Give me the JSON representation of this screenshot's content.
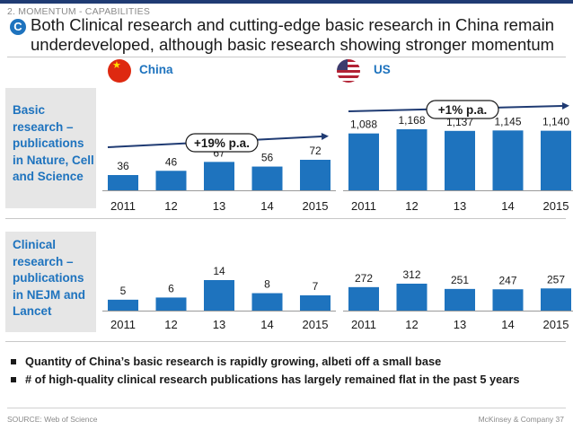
{
  "header": {
    "section": "2. MOMENTUM - CAPABILITIES",
    "badge": "C",
    "title": "Both Clinical research and cutting-edge basic research in China remain underdeveloped, although basic research showing stronger momentum"
  },
  "countries": [
    {
      "name": "China",
      "flag": "china-flag-icon"
    },
    {
      "name": "US",
      "flag": "us-flag-icon"
    }
  ],
  "rows": [
    {
      "label": "Basic research – publications in Nature, Cell and Science"
    },
    {
      "label": "Clinical research – publications in NEJM and Lancet"
    }
  ],
  "colors": {
    "bar": "#1e73be",
    "label_blue": "#1e73be",
    "accent": "#1f3b73",
    "row_bg": "#e6e6e6"
  },
  "chart_data": [
    {
      "type": "bar",
      "panel": "China – Basic research",
      "categories": [
        "2011",
        "12",
        "13",
        "14",
        "2015"
      ],
      "values": [
        36,
        46,
        67,
        56,
        72
      ],
      "annotation": "+19% p.a."
    },
    {
      "type": "bar",
      "panel": "US – Basic research",
      "categories": [
        "2011",
        "12",
        "13",
        "14",
        "2015"
      ],
      "values": [
        1088,
        1168,
        1137,
        1145,
        1140
      ],
      "value_labels": [
        "1,088",
        "1,168",
        "1,137",
        "1,145",
        "1,140"
      ],
      "annotation": "+1% p.a."
    },
    {
      "type": "bar",
      "panel": "China – Clinical research",
      "categories": [
        "2011",
        "12",
        "13",
        "14",
        "2015"
      ],
      "values": [
        5,
        6,
        14,
        8,
        7
      ]
    },
    {
      "type": "bar",
      "panel": "US – Clinical research",
      "categories": [
        "2011",
        "12",
        "13",
        "14",
        "2015"
      ],
      "values": [
        272,
        312,
        251,
        247,
        257
      ]
    }
  ],
  "bullets": [
    "Quantity of China’s basic research is rapidly growing, albeti off a small base",
    "# of high-quality clinical research publications has largely remained flat in the past 5 years"
  ],
  "footer": {
    "source": "SOURCE: Web of Science",
    "right": "McKinsey & Company  37"
  }
}
